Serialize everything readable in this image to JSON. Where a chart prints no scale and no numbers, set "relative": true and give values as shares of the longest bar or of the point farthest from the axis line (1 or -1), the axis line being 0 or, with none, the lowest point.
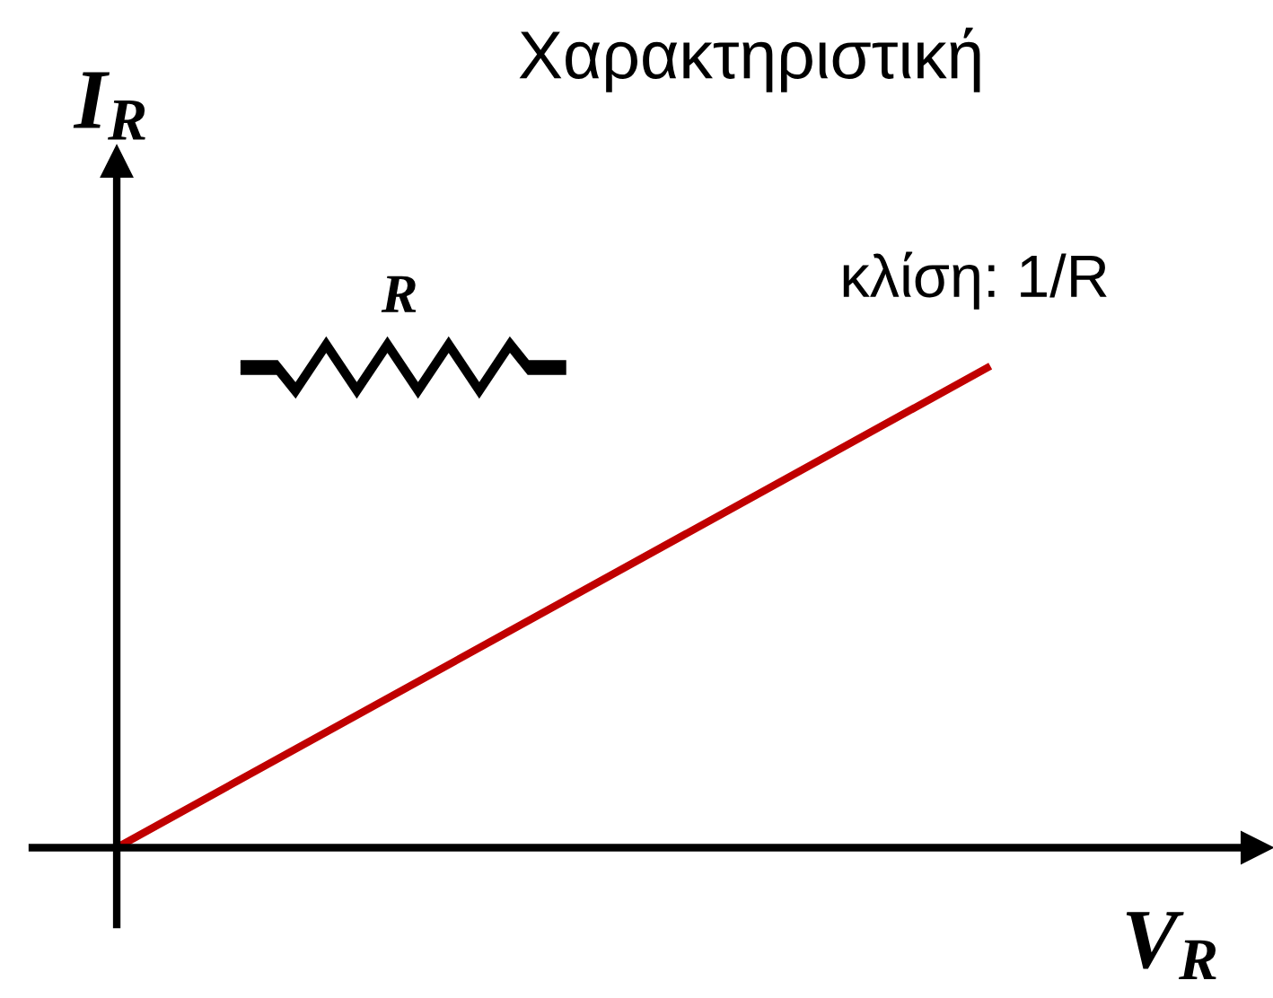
{
  "chart_data": {
    "type": "line",
    "title": "Χαρακτηριστική",
    "xlabel": "V$_{R}$",
    "ylabel": "I$_{R}$",
    "categories": [
      null,
      null
    ],
    "series": [
      {
        "color": "#c00000",
        "values": [
          0,
          1
        ]
      }
    ],
    "relative": true,
    "annotations": [
      "R",
      "κλίση: 1/R"
    ],
    "tick_labels": false,
    "marker": "none",
    "line_style": "solid"
  }
}
